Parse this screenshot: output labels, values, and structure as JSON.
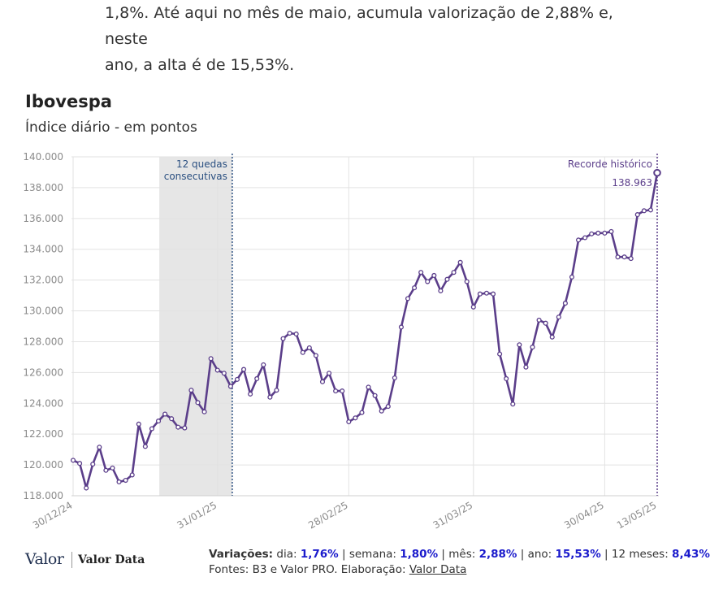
{
  "article": {
    "line1": "1,8%. Até aqui no mês de maio, acumula valorização de 2,88% e, neste",
    "line2": "ano, a alta é de 15,53%."
  },
  "chart_data": {
    "type": "line",
    "title": "Ibovespa",
    "subtitle": "Índice diário - em pontos",
    "ylim": [
      118000,
      140000
    ],
    "yticks": [
      118000,
      120000,
      122000,
      124000,
      126000,
      128000,
      130000,
      132000,
      134000,
      136000,
      138000,
      140000
    ],
    "ytick_labels": [
      "118.000",
      "120.000",
      "122.000",
      "124.000",
      "126.000",
      "128.000",
      "130.000",
      "132.000",
      "134.000",
      "136.000",
      "138.000",
      "140.000"
    ],
    "x_tick_labels": [
      "30/12/24",
      "31/01/25",
      "28/02/25",
      "31/03/25",
      "30/04/25",
      "13/05/25"
    ],
    "x_tick_index": [
      0,
      22,
      42,
      61,
      81,
      89
    ],
    "grid": true,
    "series": [
      {
        "name": "Ibovespa",
        "color": "#5b3e8a",
        "values": [
          120300,
          120100,
          118500,
          120050,
          121150,
          119650,
          119800,
          118900,
          119000,
          119350,
          122650,
          121200,
          122350,
          122850,
          123300,
          123000,
          122450,
          122400,
          124850,
          124050,
          123450,
          126900,
          126150,
          125950,
          125100,
          125550,
          126200,
          124600,
          125600,
          126500,
          124400,
          124850,
          128200,
          128550,
          128500,
          127300,
          127600,
          127100,
          125400,
          125950,
          124800,
          124800,
          122800,
          123050,
          123400,
          125050,
          124500,
          123500,
          123800,
          125650,
          128950,
          130800,
          131500,
          132500,
          131900,
          132300,
          131300,
          132050,
          132500,
          133150,
          131900,
          130250,
          131100,
          131150,
          131100,
          127200,
          125600,
          123950,
          127800,
          126350,
          127650,
          129400,
          129200,
          128300,
          129600,
          130500,
          132200,
          134600,
          134750,
          135000,
          135050,
          135050,
          135150,
          133500,
          133500,
          133400,
          136250,
          136500,
          136550,
          138963
        ]
      }
    ],
    "shaded_region": {
      "start_index": 14,
      "end_index": 24,
      "label_line1": "12 quedas",
      "label_line2": "consecutivas"
    },
    "annotations": {
      "record_label": "Recorde histórico",
      "record_value": "138.963",
      "record_index": 89
    }
  },
  "footer": {
    "logo_valor": "Valor",
    "logo_data": "Valor Data",
    "variations_label": "Variações:",
    "dia_label": "dia:",
    "dia_value": "1,76%",
    "semana_label": "semana:",
    "semana_value": "1,80%",
    "mes_label": "mês:",
    "mes_value": "2,88%",
    "ano_label": "ano:",
    "ano_value": "15,53%",
    "meses12_label": "12 meses:",
    "meses12_value": "8,43%",
    "sources_text": "Fontes: B3 e Valor PRO. Elaboração:",
    "sources_link": "Valor Data"
  },
  "colors": {
    "line": "#5b3e8a",
    "accent_blue": "#1a1acc",
    "shade": "#e6e6e6",
    "annotation_blue": "#2a4f80",
    "annotation_purple": "#5b3e8a"
  }
}
